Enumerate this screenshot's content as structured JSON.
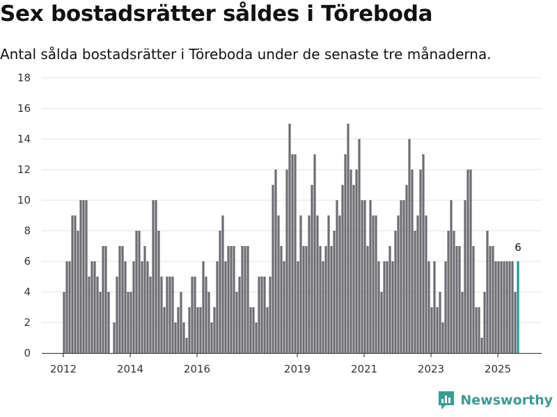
{
  "title": "Sex bostadsrätter såldes i Töreboda",
  "subtitle": "Antal sålda bostadsrätter i Töreboda under de senaste tre månaderna.",
  "brand": "Newsworthy",
  "colors": {
    "bar": "#6d6c72",
    "highlight": "#179d96",
    "grid": "#e2e2e2",
    "axis": "#444444",
    "brand": "#3a9b93"
  },
  "chart_data": {
    "type": "bar",
    "title": "Sex bostadsrätter såldes i Töreboda",
    "subtitle": "Antal sålda bostadsrätter i Töreboda under de senaste tre månaderna.",
    "xlabel": "",
    "ylabel": "",
    "ylim": [
      0,
      18
    ],
    "yticks": [
      0,
      2,
      4,
      6,
      8,
      10,
      12,
      14,
      16,
      18
    ],
    "xticks": [
      {
        "label": "2012",
        "index": 0
      },
      {
        "label": "2014",
        "index": 24
      },
      {
        "label": "2016",
        "index": 48
      },
      {
        "label": "2019",
        "index": 84
      },
      {
        "label": "2021",
        "index": 108
      },
      {
        "label": "2023",
        "index": 132
      },
      {
        "label": "2025",
        "index": 156
      }
    ],
    "grid": true,
    "highlight_last": true,
    "last_value_label": "6",
    "values": [
      4,
      6,
      6,
      9,
      9,
      8,
      10,
      10,
      10,
      5,
      6,
      6,
      5,
      4,
      7,
      7,
      4,
      0,
      2,
      5,
      7,
      7,
      6,
      4,
      4,
      6,
      8,
      8,
      6,
      7,
      6,
      5,
      10,
      10,
      8,
      5,
      3,
      5,
      5,
      5,
      2,
      3,
      4,
      2,
      1,
      3,
      5,
      5,
      3,
      3,
      6,
      5,
      4,
      2,
      3,
      6,
      8,
      9,
      6,
      7,
      7,
      7,
      4,
      5,
      7,
      7,
      7,
      3,
      3,
      2,
      5,
      5,
      5,
      3,
      5,
      11,
      12,
      9,
      7,
      6,
      12,
      15,
      13,
      13,
      6,
      9,
      7,
      7,
      9,
      11,
      13,
      9,
      7,
      6,
      7,
      9,
      7,
      8,
      10,
      9,
      11,
      13,
      15,
      12,
      11,
      12,
      14,
      10,
      10,
      7,
      10,
      9,
      9,
      6,
      4,
      6,
      6,
      7,
      6,
      8,
      9,
      10,
      10,
      11,
      14,
      12,
      8,
      9,
      12,
      13,
      9,
      6,
      3,
      6,
      3,
      4,
      2,
      6,
      8,
      10,
      8,
      7,
      7,
      4,
      10,
      12,
      12,
      7,
      3,
      3,
      1,
      4,
      8,
      7,
      7,
      6,
      6,
      6,
      6,
      6,
      6,
      6,
      4,
      6
    ]
  }
}
